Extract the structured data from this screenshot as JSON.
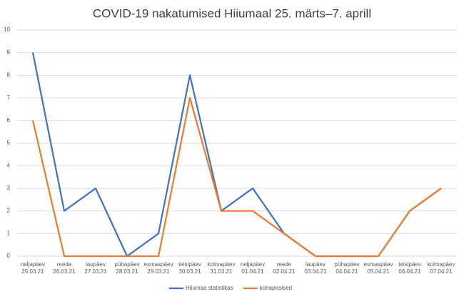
{
  "chart_data": {
    "type": "line",
    "title": "COVID-19 nakatumised Hiiumaal 25. märts–7. aprill",
    "categories": [
      [
        "neljapäev",
        "25.03.21"
      ],
      [
        "reede",
        "26.03.21"
      ],
      [
        "laupäev",
        "27.03.21"
      ],
      [
        "pühapäev",
        "28.03.21"
      ],
      [
        "esmaspäev",
        "29.03.21"
      ],
      [
        "teisipäev",
        "30.03.21"
      ],
      [
        "kolmapäev",
        "31.03.21"
      ],
      [
        "neljapäev",
        "01.04.21"
      ],
      [
        "reede",
        "02.04.21"
      ],
      [
        "laupäev",
        "03.04.21"
      ],
      [
        "pühapäev",
        "04.04.21"
      ],
      [
        "esmaspäev",
        "05.04.21"
      ],
      [
        "teisipäev",
        "06.04.21"
      ],
      [
        "kolmapäev",
        "07.04.21"
      ]
    ],
    "series": [
      {
        "name": "Hiiumaa statistikas",
        "color": "#4472c4",
        "values": [
          9,
          2,
          3,
          0,
          1,
          8,
          2,
          3,
          1,
          0,
          0,
          0,
          2,
          3
        ]
      },
      {
        "name": "kohapealsed",
        "color": "#ed7d31",
        "values": [
          6,
          0,
          0,
          0,
          0,
          7,
          2,
          2,
          1,
          0,
          0,
          0,
          2,
          3
        ]
      }
    ],
    "ylim": [
      0,
      10
    ],
    "yticks": [
      0,
      1,
      2,
      3,
      4,
      5,
      6,
      7,
      8,
      9,
      10
    ],
    "grid": true,
    "legend": "bottom"
  }
}
